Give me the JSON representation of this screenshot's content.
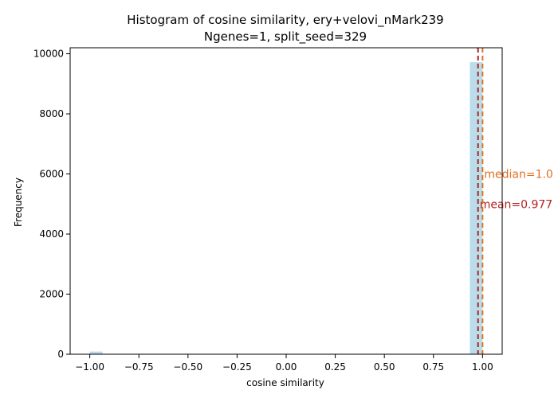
{
  "chart_data": {
    "type": "bar",
    "title_line1": "Histogram of cosine similarity, ery+velovi_nMark239",
    "title_line2": "Ngenes=1, split_seed=329",
    "xlabel": "cosine similarity",
    "ylabel": "Frequency",
    "xlim": [
      -1.1,
      1.1
    ],
    "ylim": [
      0,
      10200
    ],
    "xticks": [
      -1.0,
      -0.75,
      -0.5,
      -0.25,
      0.0,
      0.25,
      0.5,
      0.75,
      1.0
    ],
    "xtick_labels": [
      "−1.00",
      "−0.75",
      "−0.50",
      "−0.25",
      "0.00",
      "0.25",
      "0.50",
      "0.75",
      "1.00"
    ],
    "yticks": [
      0,
      2000,
      4000,
      6000,
      8000,
      10000
    ],
    "ytick_labels": [
      "0",
      "2000",
      "4000",
      "6000",
      "8000",
      "10000"
    ],
    "bars": [
      {
        "x0": -1.0,
        "x1": -0.935,
        "value": 90
      },
      {
        "x0": 0.935,
        "x1": 1.0,
        "value": 9720
      }
    ],
    "bar_color": "#add8e6",
    "vlines": [
      {
        "x": 0.977,
        "color": "#b22222",
        "label": "mean=0.977",
        "label_y": 5000
      },
      {
        "x": 1.0,
        "color": "#e07020",
        "label": "median=1.0",
        "label_y": 6000
      }
    ]
  }
}
